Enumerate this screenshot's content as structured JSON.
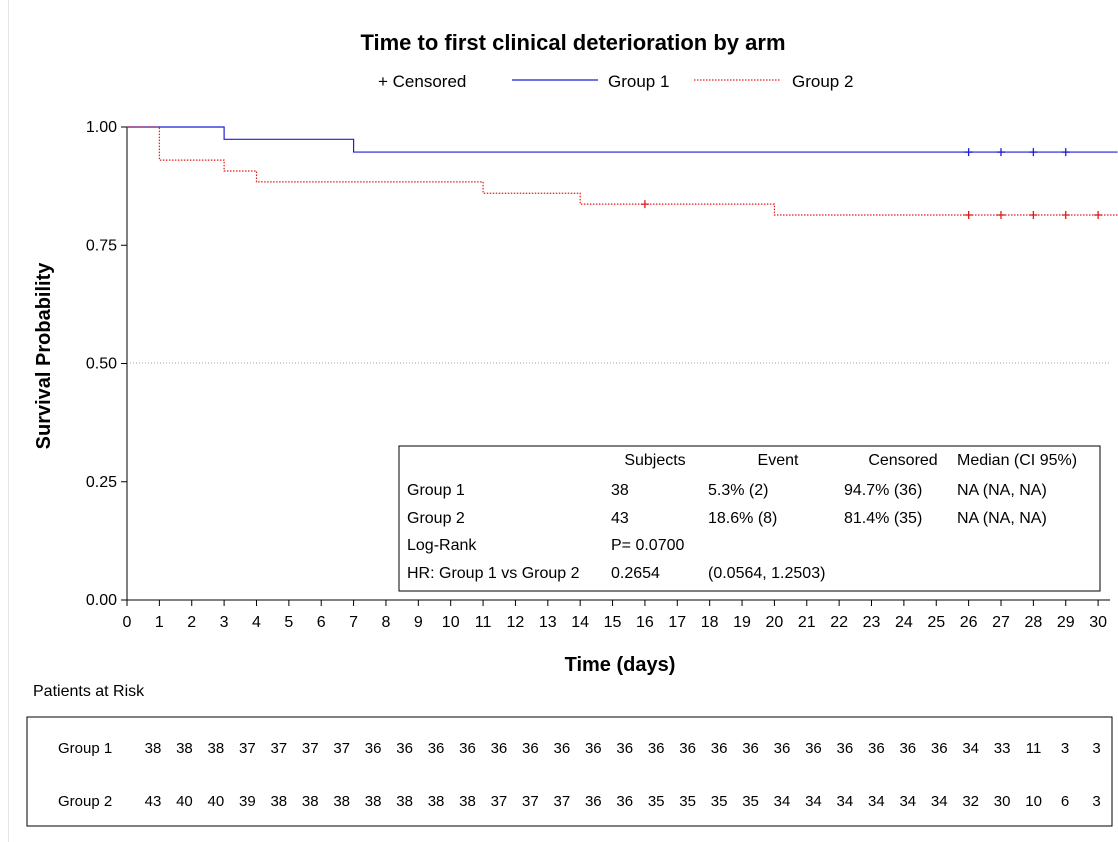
{
  "chart_data": {
    "type": "line",
    "title": "Time to first clinical deterioration by arm",
    "xlabel": "Time (days)",
    "ylabel": "Survival Probability",
    "xlim": [
      0,
      30.6
    ],
    "ylim": [
      0,
      1
    ],
    "x_ticks": [
      "0",
      "1",
      "2",
      "3",
      "4",
      "5",
      "6",
      "7",
      "8",
      "9",
      "10",
      "11",
      "12",
      "13",
      "14",
      "15",
      "16",
      "17",
      "18",
      "19",
      "20",
      "21",
      "22",
      "23",
      "24",
      "25",
      "26",
      "27",
      "28",
      "29",
      "30"
    ],
    "y_ticks": [
      "0.00",
      "0.25",
      "0.50",
      "0.75",
      "1.00"
    ],
    "reference_line_y": 0.5,
    "legend": {
      "placement": "top",
      "censored_label": "+ Censored",
      "entries": [
        "Group 1",
        "Group 2"
      ]
    },
    "series": [
      {
        "name": "Group 1",
        "color": "#1f1fd9",
        "line_style": "solid",
        "steps": [
          [
            0,
            1.0
          ],
          [
            3,
            0.974
          ],
          [
            7,
            0.947
          ]
        ],
        "end_x": 30.6,
        "censored": [
          [
            26,
            0.947
          ],
          [
            27,
            0.947
          ],
          [
            28,
            0.947
          ],
          [
            29,
            0.947
          ]
        ]
      },
      {
        "name": "Group 2",
        "color": "#e01b1b",
        "line_style": "dotted",
        "steps": [
          [
            0,
            1.0
          ],
          [
            1,
            0.93
          ],
          [
            3,
            0.907
          ],
          [
            4,
            0.884
          ],
          [
            11,
            0.86
          ],
          [
            14,
            0.837
          ],
          [
            20,
            0.814
          ]
        ],
        "end_x": 30.6,
        "censored": [
          [
            16,
            0.837
          ],
          [
            26,
            0.814
          ],
          [
            27,
            0.814
          ],
          [
            28,
            0.814
          ],
          [
            29,
            0.814
          ],
          [
            30,
            0.814
          ]
        ]
      }
    ],
    "stats_table": {
      "headers": [
        "",
        "Subjects",
        "Event",
        "Censored",
        "Median (CI 95%)"
      ],
      "rows": [
        [
          "Group 1",
          "38",
          "5.3% (2)",
          "94.7% (36)",
          "NA (NA, NA)"
        ],
        [
          "Group 2",
          "43",
          "18.6% (8)",
          "81.4% (35)",
          "NA (NA, NA)"
        ],
        [
          "Log-Rank",
          "P= 0.0700",
          "",
          "",
          ""
        ],
        [
          "HR: Group 1 vs Group 2",
          "0.2654",
          "(0.0564, 1.2503)",
          "",
          ""
        ]
      ]
    },
    "risk_table": {
      "title": "Patients at Risk",
      "rows": [
        {
          "label": "Group 1",
          "values": [
            "38",
            "38",
            "38",
            "37",
            "37",
            "37",
            "37",
            "36",
            "36",
            "36",
            "36",
            "36",
            "36",
            "36",
            "36",
            "36",
            "36",
            "36",
            "36",
            "36",
            "36",
            "36",
            "36",
            "36",
            "36",
            "36",
            "34",
            "33",
            "11",
            "3",
            "3"
          ]
        },
        {
          "label": "Group 2",
          "values": [
            "43",
            "40",
            "40",
            "39",
            "38",
            "38",
            "38",
            "38",
            "38",
            "38",
            "38",
            "37",
            "37",
            "37",
            "36",
            "36",
            "35",
            "35",
            "35",
            "35",
            "34",
            "34",
            "34",
            "34",
            "34",
            "34",
            "32",
            "30",
            "10",
            "6",
            "3"
          ]
        }
      ]
    }
  }
}
